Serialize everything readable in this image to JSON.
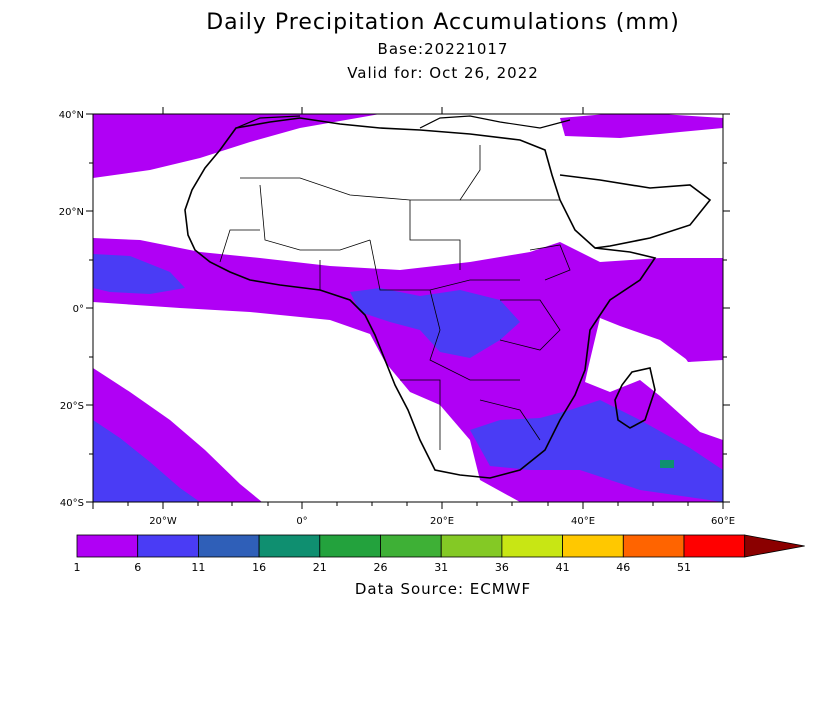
{
  "header": {
    "title": "Daily Precipitation Accumulations (mm)",
    "base": "Base:20221017",
    "valid": "Valid for: Oct 26, 2022"
  },
  "map": {
    "region": "Africa",
    "lat_ticks": [
      "40°N",
      "20°N",
      "0°",
      "20°S",
      "40°S"
    ],
    "lon_ticks": [
      "20°W",
      "0°",
      "20°E",
      "40°E",
      "60°E"
    ]
  },
  "legend": {
    "bins": [
      {
        "label": "1",
        "color": "#b000f5"
      },
      {
        "label": "6",
        "color": "#4a3cf5"
      },
      {
        "label": "11",
        "color": "#2f5fb8"
      },
      {
        "label": "16",
        "color": "#0f8f70"
      },
      {
        "label": "21",
        "color": "#23a23d"
      },
      {
        "label": "26",
        "color": "#3eb036"
      },
      {
        "label": "31",
        "color": "#84c925"
      },
      {
        "label": "36",
        "color": "#c8e614"
      },
      {
        "label": "41",
        "color": "#ffc800"
      },
      {
        "label": "46",
        "color": "#ff6400"
      },
      {
        "label": "51",
        "color": "#ff0000"
      }
    ],
    "overflow_color": "#8b0000"
  },
  "footer": {
    "source": "Data Source: ECMWF"
  }
}
